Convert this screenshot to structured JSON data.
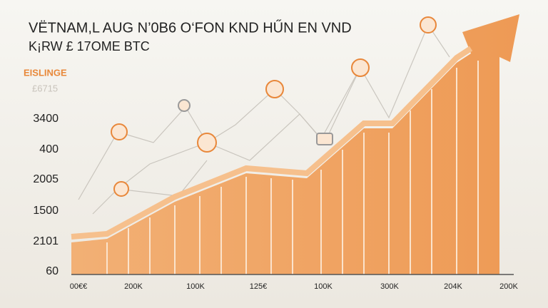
{
  "header": {
    "title_line1": "VËTNAM,L AUG N’0B6 O‘FON KND HŰN EN VND",
    "title_line2": "K¡RW £ 17OME BTC"
  },
  "legend": {
    "label": "EISLINGE",
    "sublabel": "£6715"
  },
  "y_labels": [
    "3400",
    "400",
    "2005",
    "1500",
    "2101",
    "60"
  ],
  "x_labels": [
    "00€€",
    "200K",
    "100K",
    "125€",
    "100K",
    "300K",
    "204K",
    "200K"
  ]
}
